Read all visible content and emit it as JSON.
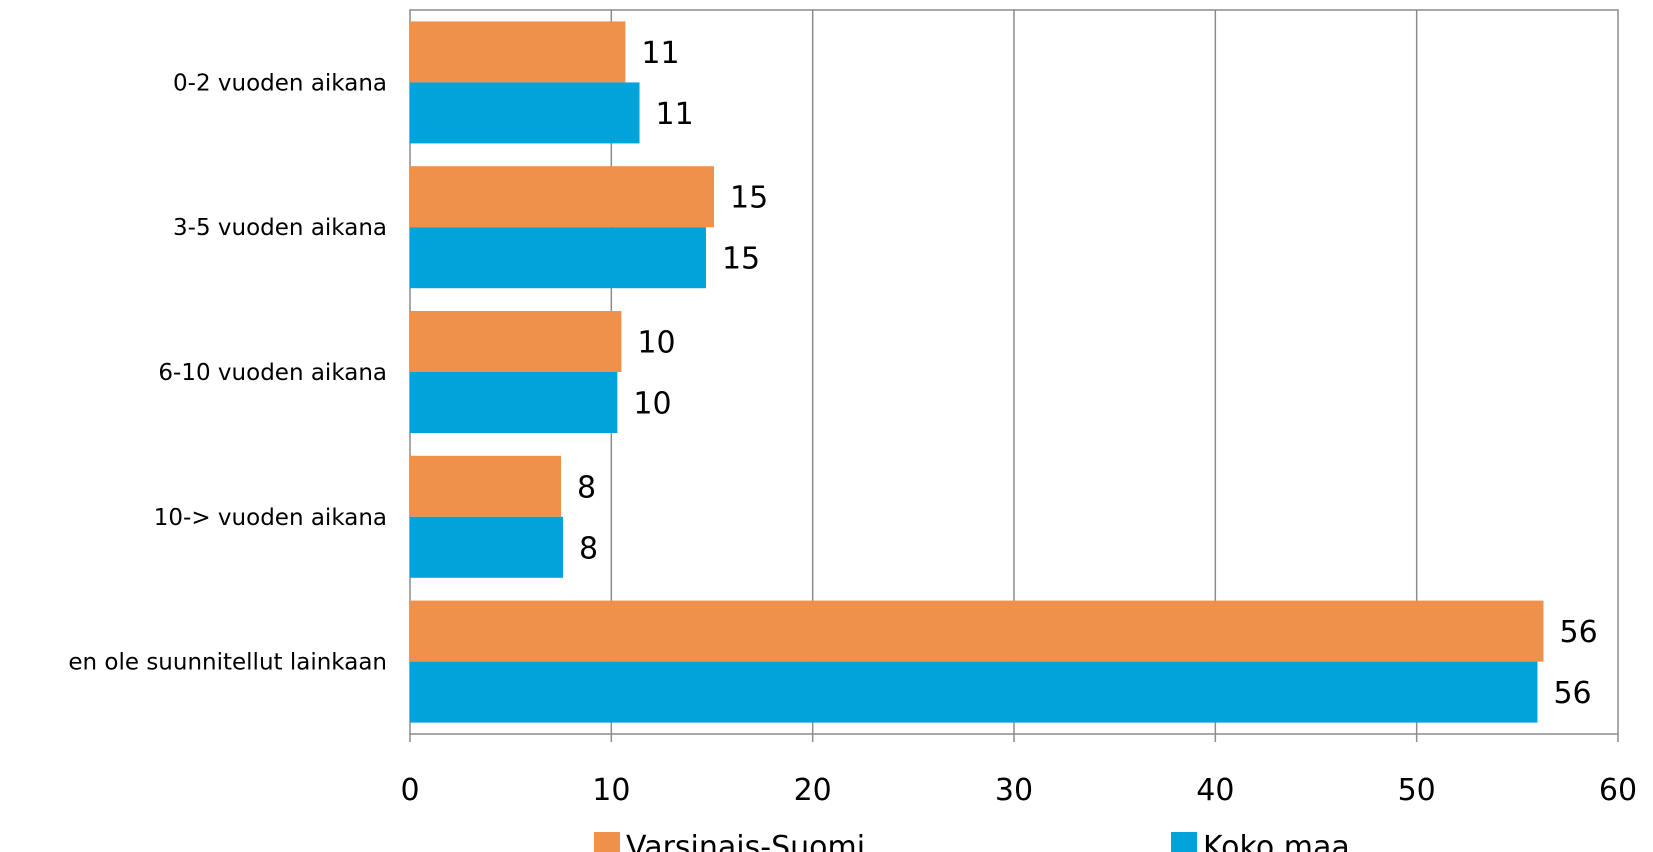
{
  "chart_data": {
    "type": "bar",
    "orientation": "horizontal",
    "categories": [
      "0-2 vuoden aikana",
      "3-5 vuoden aikana",
      "6-10 vuoden aikana",
      "10-> vuoden aikana",
      "en ole suunnitellut  lainkaan"
    ],
    "series": [
      {
        "name": "Varsinais-Suomi",
        "color": "#F0914B",
        "values": [
          10.7,
          15.1,
          10.5,
          7.5,
          56.3
        ],
        "labels": [
          "11",
          "15",
          "10",
          "8",
          "56"
        ]
      },
      {
        "name": "Koko maa",
        "color": "#00A4DA",
        "values": [
          11.4,
          14.7,
          10.3,
          7.6,
          56.0
        ],
        "labels": [
          "11",
          "15",
          "10",
          "8",
          "56"
        ]
      }
    ],
    "xlim": [
      0,
      60
    ],
    "x_ticks": [
      0,
      10,
      20,
      30,
      40,
      50,
      60
    ],
    "x_tick_labels": [
      "0",
      "10",
      "20",
      "30",
      "40",
      "50",
      "60"
    ],
    "grid": "vertical",
    "legend_position": "bottom"
  }
}
